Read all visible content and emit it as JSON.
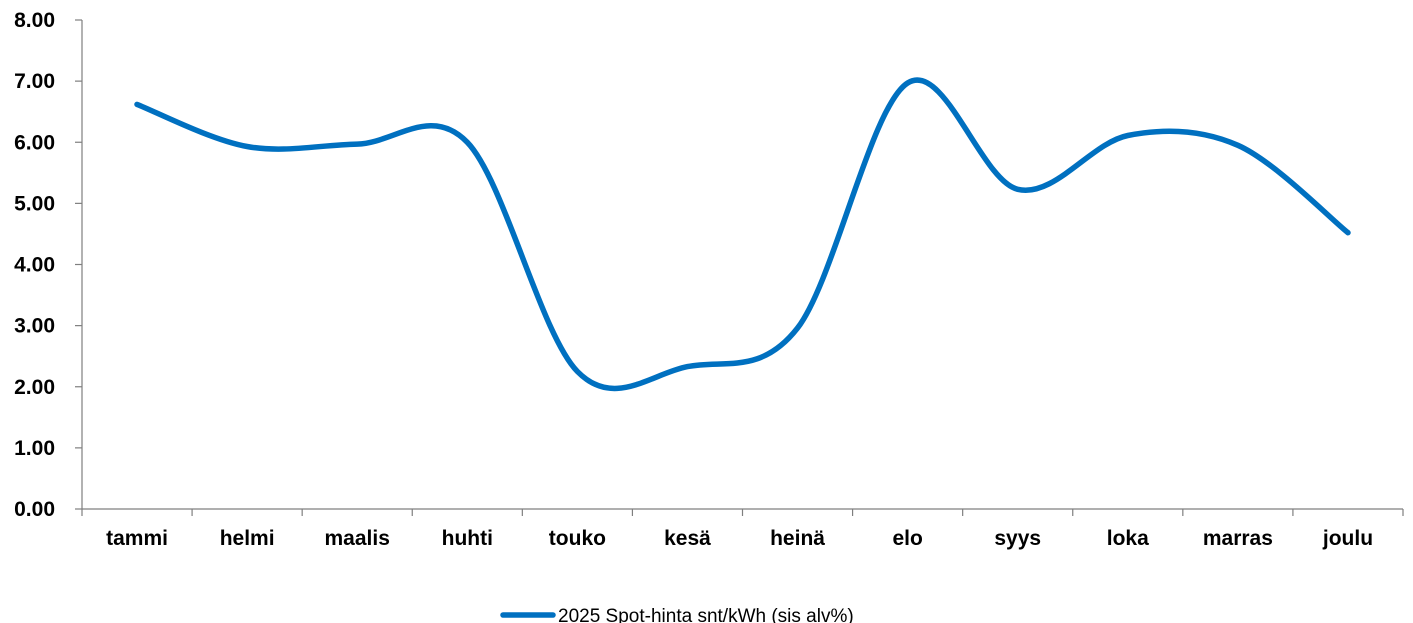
{
  "chart_data": {
    "type": "line",
    "categories": [
      "tammi",
      "helmi",
      "maalis",
      "huhti",
      "touko",
      "kesä",
      "heinä",
      "elo",
      "syys",
      "loka",
      "marras",
      "joulu"
    ],
    "series": [
      {
        "name": "2025 Spot-hinta snt/kWh (sis alv%)",
        "values": [
          6.62,
          5.93,
          5.97,
          6.0,
          2.25,
          2.33,
          2.96,
          6.97,
          5.23,
          6.11,
          5.95,
          4.52
        ],
        "color": "#0070c0"
      }
    ],
    "ylim": [
      0,
      8
    ],
    "yticks": [
      "0.00",
      "1.00",
      "2.00",
      "3.00",
      "4.00",
      "5.00",
      "6.00",
      "7.00",
      "8.00"
    ],
    "grid": false,
    "smooth": true,
    "legend_position": "bottom",
    "title": "",
    "xlabel": "",
    "ylabel": ""
  }
}
